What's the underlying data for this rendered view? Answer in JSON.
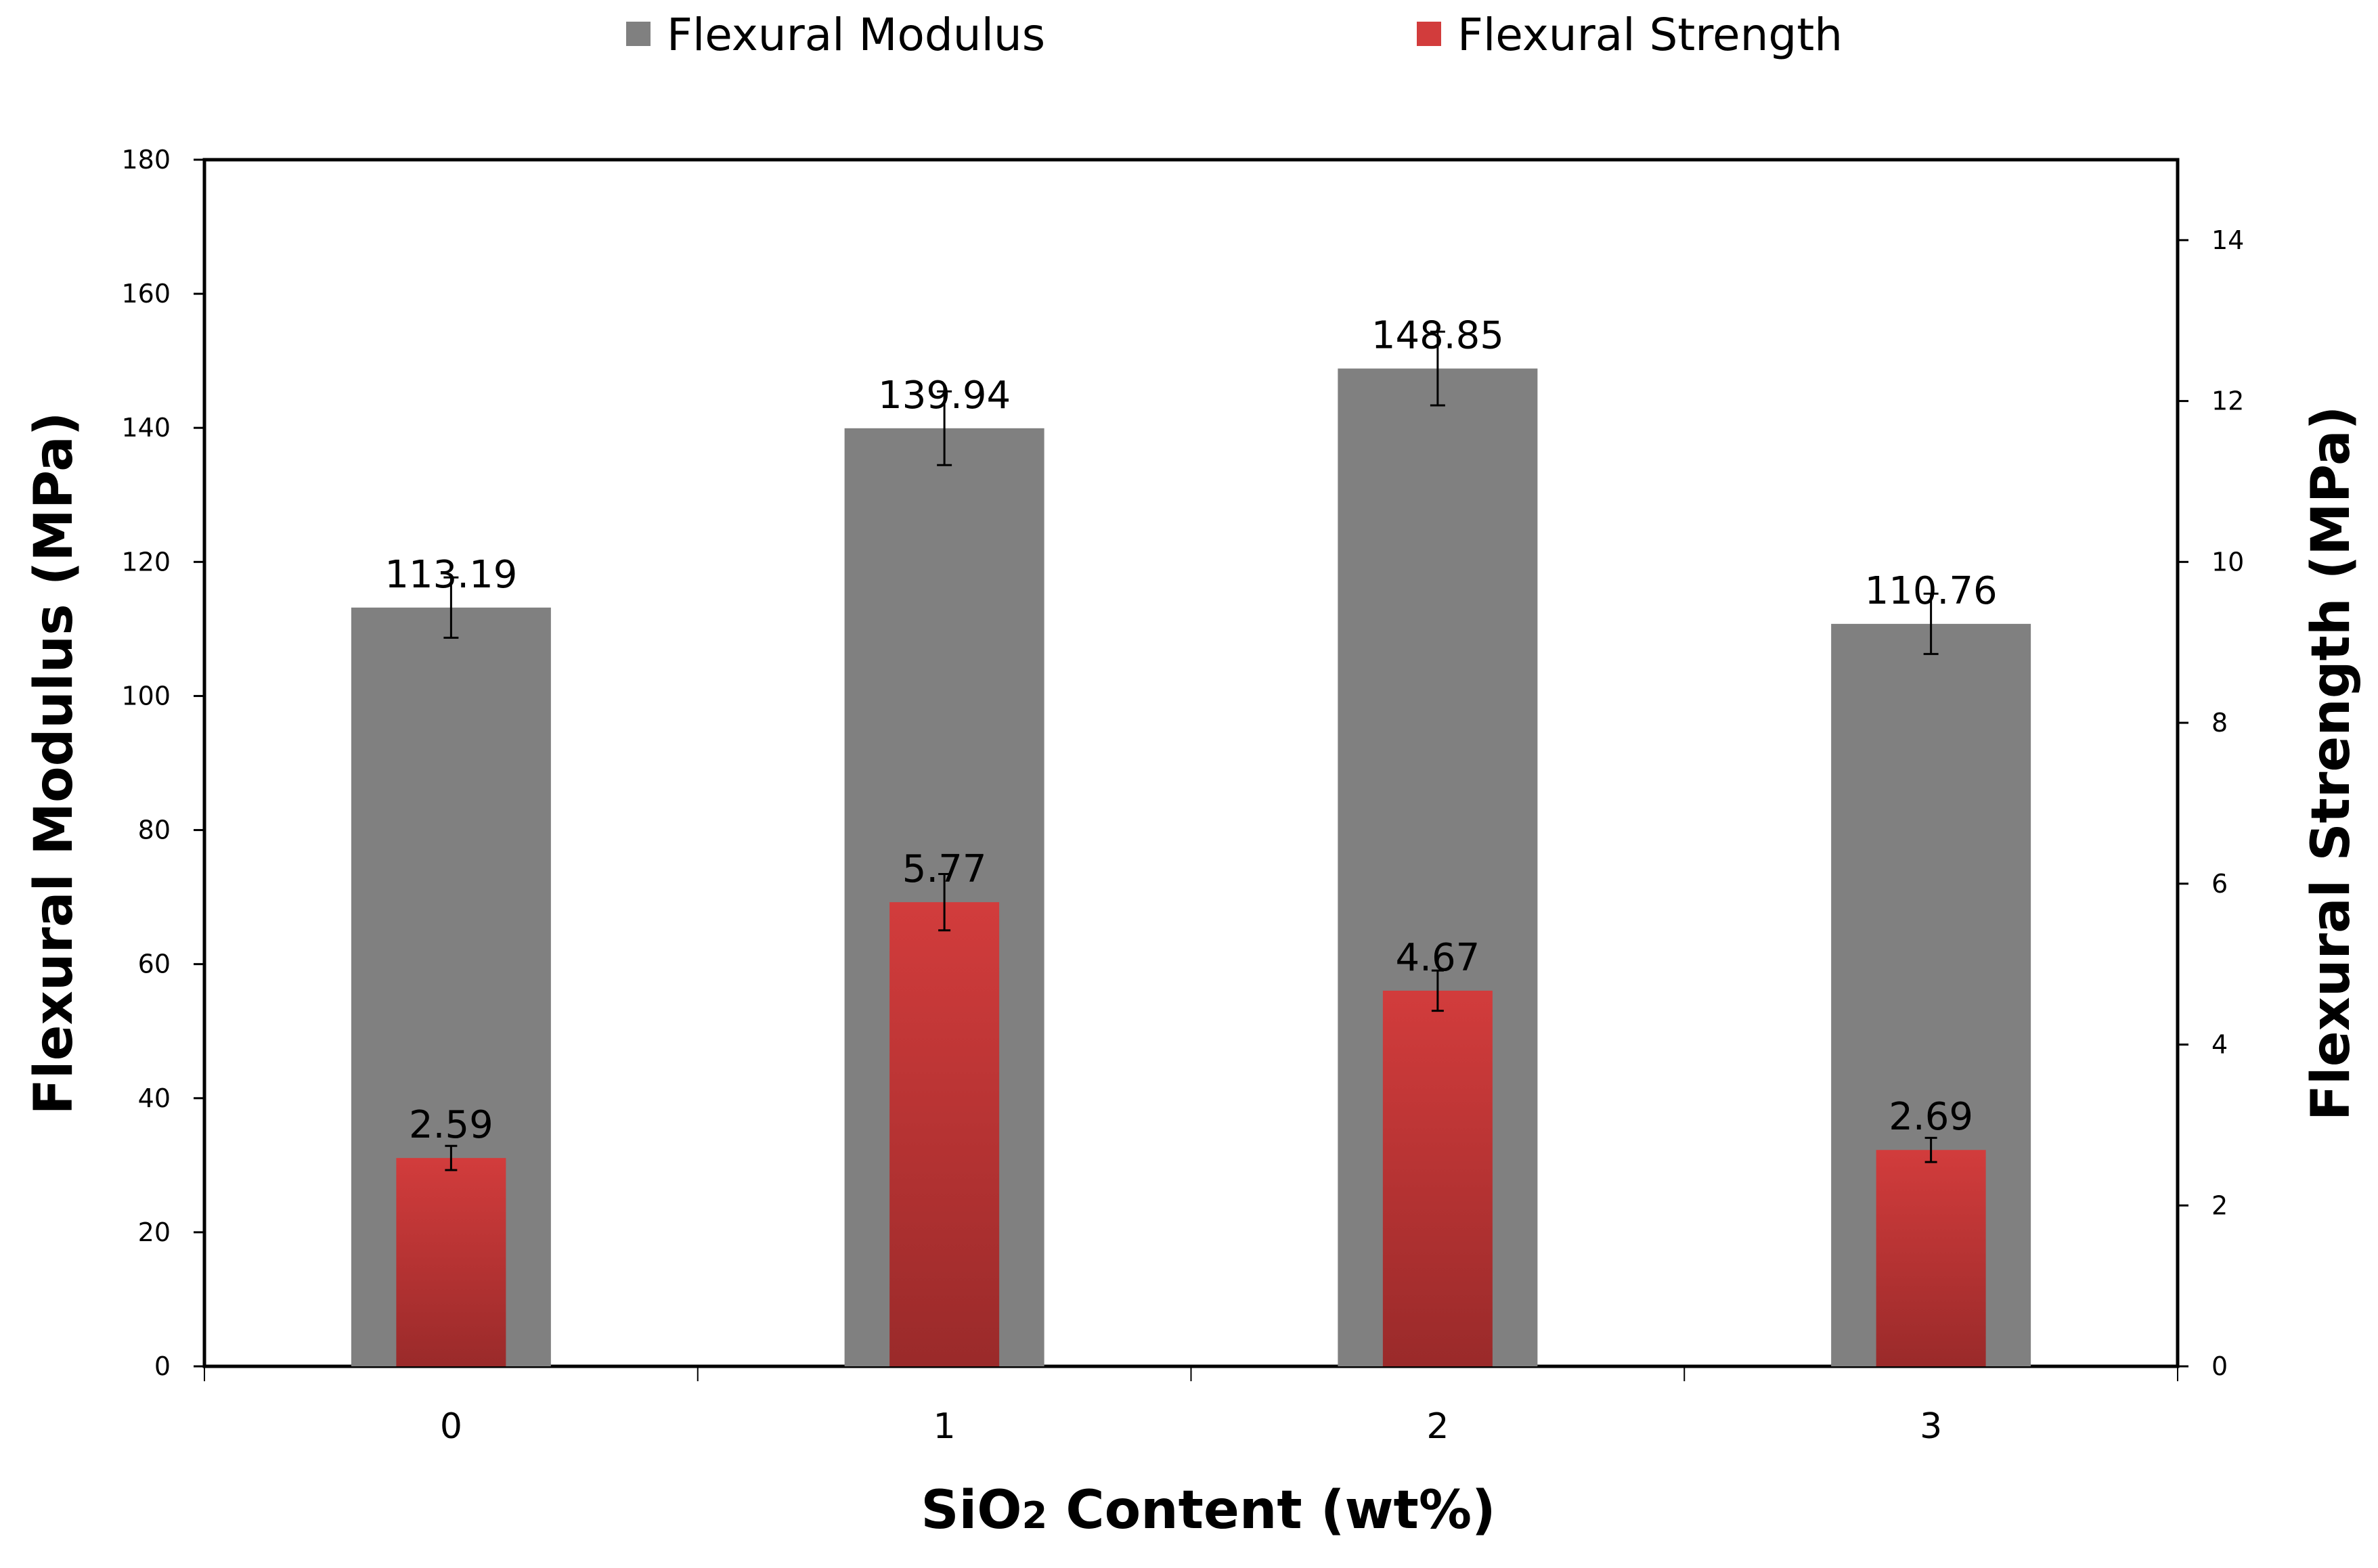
{
  "chart_data": {
    "type": "bar",
    "categories": [
      "0",
      "1",
      "2",
      "3"
    ],
    "xlabel_main": "SiO",
    "xlabel_sub": "2",
    "xlabel_rest": " Content (wt%)",
    "ylabel": "Flexural Modulus (MPa)",
    "y2label": "Flexural Strength (MPa)",
    "ylim": [
      0,
      180
    ],
    "y_ticks": [
      "0",
      "20",
      "40",
      "60",
      "80",
      "100",
      "120",
      "140",
      "160",
      "180"
    ],
    "y2lim": [
      0,
      15
    ],
    "y2_ticks": [
      "0",
      "2",
      "4",
      "6",
      "8",
      "10",
      "12",
      "14"
    ],
    "legend_position": "top-center",
    "series": [
      {
        "name": "Flexural Modulus",
        "axis": "left",
        "color": "#808080",
        "values": [
          113.19,
          139.94,
          148.85,
          110.76
        ],
        "labels": [
          "113.19",
          "139.94",
          "148.85",
          "110.76"
        ],
        "errors": [
          4.5,
          5.5,
          5.5,
          4.5
        ]
      },
      {
        "name": "Flexural Strength",
        "axis": "right",
        "color": "#d23c3c",
        "color_dark": "#9a2a2a",
        "values": [
          2.59,
          5.77,
          4.67,
          2.69
        ],
        "labels": [
          "2.59",
          "5.77",
          "4.67",
          "2.69"
        ],
        "errors": [
          0.15,
          0.35,
          0.25,
          0.15
        ]
      }
    ]
  }
}
